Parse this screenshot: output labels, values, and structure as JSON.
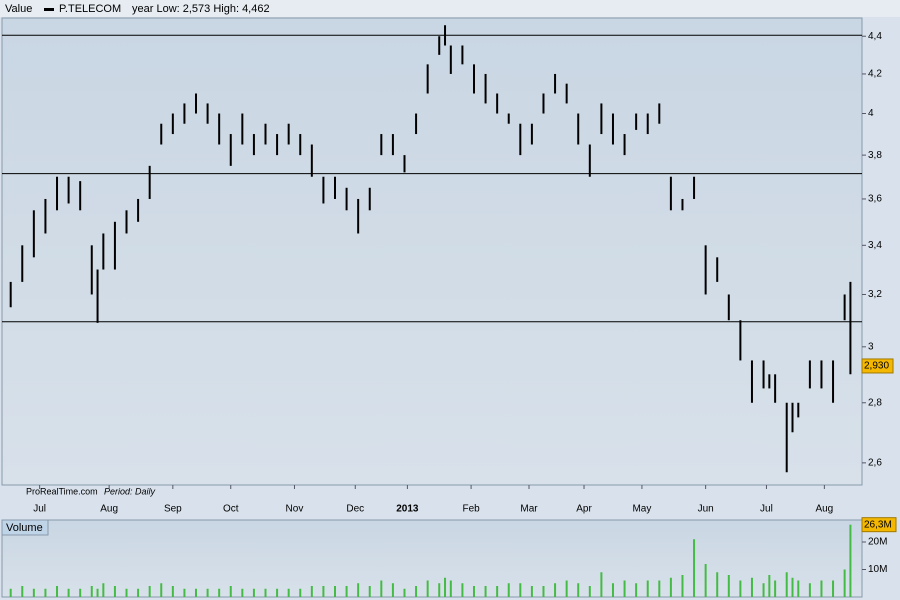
{
  "chart_data": [
    {
      "type": "hilo",
      "header": {
        "value_label": "Value",
        "name": "P.TELECOM",
        "range_text": "year Low: 2,573 High: 4,462"
      },
      "footer": {
        "site": "ProRealTime.com",
        "period": "Period: Daily"
      },
      "log_scale": true,
      "color": "#000000",
      "hline_color": "#000000",
      "x": [
        0,
        4,
        8,
        12,
        16,
        20,
        24,
        28,
        30,
        32,
        36,
        40,
        44,
        48,
        52,
        56,
        60,
        64,
        68,
        72,
        76,
        80,
        84,
        88,
        92,
        96,
        100,
        104,
        108,
        112,
        116,
        120,
        124,
        128,
        132,
        136,
        140,
        144,
        148,
        150,
        152,
        156,
        160,
        164,
        168,
        172,
        176,
        180,
        184,
        188,
        192,
        196,
        200,
        204,
        208,
        212,
        216,
        220,
        224,
        228,
        232,
        236,
        240,
        244,
        248,
        252,
        256,
        260,
        262,
        264,
        268,
        270,
        272,
        276,
        280,
        284,
        288,
        290
      ],
      "high": [
        3.25,
        3.4,
        3.55,
        3.6,
        3.7,
        3.7,
        3.68,
        3.4,
        3.3,
        3.45,
        3.5,
        3.55,
        3.6,
        3.75,
        3.95,
        4.0,
        4.05,
        4.1,
        4.05,
        4.0,
        3.9,
        4.0,
        3.9,
        3.95,
        3.9,
        3.95,
        3.9,
        3.85,
        3.7,
        3.7,
        3.65,
        3.6,
        3.65,
        3.9,
        3.9,
        3.8,
        4.0,
        4.25,
        4.4,
        4.46,
        4.35,
        4.35,
        4.25,
        4.2,
        4.1,
        4.0,
        3.95,
        3.95,
        4.1,
        4.2,
        4.15,
        4.0,
        3.85,
        4.05,
        4.0,
        3.9,
        4.0,
        4.0,
        4.05,
        3.7,
        3.6,
        3.7,
        3.4,
        3.35,
        3.2,
        3.1,
        2.95,
        2.95,
        2.9,
        2.9,
        2.8,
        2.8,
        2.8,
        2.95,
        2.95,
        2.95,
        3.2,
        3.25
      ],
      "low": [
        3.15,
        3.25,
        3.35,
        3.45,
        3.55,
        3.58,
        3.55,
        3.2,
        3.09,
        3.3,
        3.3,
        3.45,
        3.5,
        3.6,
        3.85,
        3.9,
        3.95,
        4.0,
        3.95,
        3.85,
        3.75,
        3.85,
        3.8,
        3.85,
        3.8,
        3.85,
        3.8,
        3.7,
        3.58,
        3.6,
        3.55,
        3.45,
        3.55,
        3.8,
        3.8,
        3.72,
        3.9,
        4.1,
        4.3,
        4.35,
        4.2,
        4.25,
        4.1,
        4.05,
        4.0,
        3.95,
        3.8,
        3.85,
        4.0,
        4.1,
        4.05,
        3.85,
        3.7,
        3.9,
        3.85,
        3.8,
        3.92,
        3.9,
        3.95,
        3.55,
        3.55,
        3.6,
        3.2,
        3.25,
        3.1,
        2.95,
        2.8,
        2.85,
        2.85,
        2.8,
        2.57,
        2.7,
        2.75,
        2.85,
        2.85,
        2.8,
        3.1,
        2.9
      ],
      "hlines": [
        4.405,
        3.714,
        3.094
      ],
      "last_value": {
        "value": 2.93,
        "label": "2,930"
      },
      "xlim": [
        -3,
        294
      ],
      "xticks": [
        {
          "value": 10,
          "label": "Jul"
        },
        {
          "value": 34,
          "label": "Aug"
        },
        {
          "value": 56,
          "label": "Sep"
        },
        {
          "value": 76,
          "label": "Oct"
        },
        {
          "value": 98,
          "label": "Nov"
        },
        {
          "value": 119,
          "label": "Dec"
        },
        {
          "value": 137,
          "label": "2013"
        },
        {
          "value": 159,
          "label": "Feb"
        },
        {
          "value": 179,
          "label": "Mar"
        },
        {
          "value": 198,
          "label": "Apr"
        },
        {
          "value": 218,
          "label": "May"
        },
        {
          "value": 240,
          "label": "Jun"
        },
        {
          "value": 261,
          "label": "Jul"
        },
        {
          "value": 281,
          "label": "Aug"
        }
      ],
      "ylim": [
        2.53,
        4.5
      ],
      "yticks": [
        {
          "value": 2.6,
          "label": "2,6"
        },
        {
          "value": 2.8,
          "label": "2,8"
        },
        3,
        {
          "value": 3.2,
          "label": "3,2"
        },
        {
          "value": 3.4,
          "label": "3,4"
        },
        {
          "value": 3.6,
          "label": "3,6"
        },
        {
          "value": 3.8,
          "label": "3,8"
        },
        4,
        {
          "value": 4.2,
          "label": "4,2"
        },
        {
          "value": 4.4,
          "label": "4,4"
        }
      ]
    },
    {
      "type": "bar",
      "title": "Volume",
      "color": "#44bb44",
      "x": [
        0,
        4,
        8,
        12,
        16,
        20,
        24,
        28,
        30,
        32,
        36,
        40,
        44,
        48,
        52,
        56,
        60,
        64,
        68,
        72,
        76,
        80,
        84,
        88,
        92,
        96,
        100,
        104,
        108,
        112,
        116,
        120,
        124,
        128,
        132,
        136,
        140,
        144,
        148,
        150,
        152,
        156,
        160,
        164,
        168,
        172,
        176,
        180,
        184,
        188,
        192,
        196,
        200,
        204,
        208,
        212,
        216,
        220,
        224,
        228,
        232,
        236,
        240,
        244,
        248,
        252,
        256,
        260,
        262,
        264,
        268,
        270,
        272,
        276,
        280,
        284,
        288,
        290
      ],
      "values": [
        3,
        4,
        3,
        3,
        4,
        3,
        3,
        4,
        3,
        5,
        4,
        3,
        3,
        4,
        5,
        4,
        3,
        3,
        3,
        3,
        4,
        3,
        3,
        3,
        3,
        3,
        3,
        4,
        4,
        4,
        4,
        5,
        4,
        6,
        5,
        3,
        4,
        6,
        5,
        7,
        6,
        5,
        4,
        4,
        4,
        5,
        5,
        4,
        4,
        5,
        6,
        5,
        4,
        9,
        5,
        6,
        5,
        6,
        6,
        7,
        8,
        21,
        12,
        9,
        8,
        6,
        7,
        5,
        8,
        6,
        9,
        7,
        6,
        5,
        6,
        6,
        10,
        26.3
      ],
      "last_value": {
        "value": 26.3,
        "label": "26,3M"
      },
      "xlim": [
        -3,
        294
      ],
      "ylim": [
        0,
        28
      ],
      "yticks": [
        {
          "value": 10,
          "label": "10M"
        },
        {
          "value": 20,
          "label": "20M"
        }
      ]
    }
  ]
}
